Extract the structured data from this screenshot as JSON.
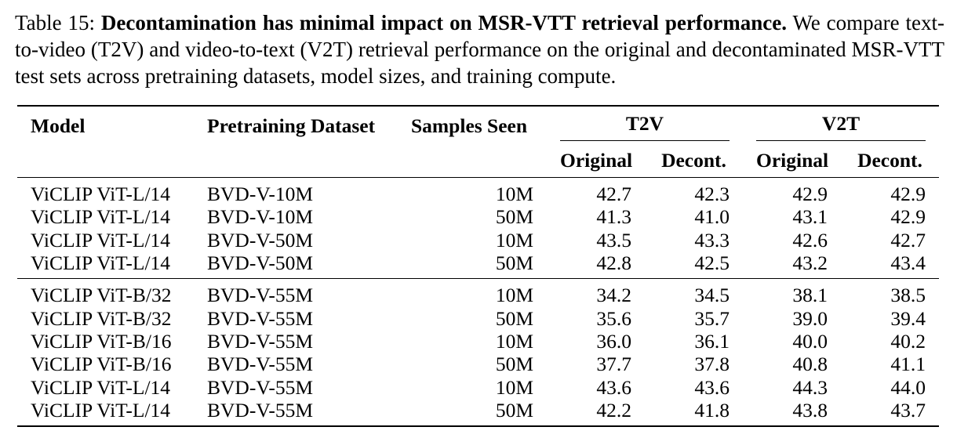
{
  "caption": {
    "label": "Table 15:",
    "bold_title": "Decontamination has minimal impact on MSR-VTT retrieval performance.",
    "body": "We compare text-to-video (T2V) and video-to-text (V2T) retrieval performance on the original and decontaminated MSR-VTT test sets across pretraining datasets, model sizes, and training compute."
  },
  "table": {
    "headers": {
      "model": "Model",
      "dataset": "Pretraining Dataset",
      "samples": "Samples Seen",
      "t2v": "T2V",
      "v2t": "V2T",
      "original": "Original",
      "decont": "Decont."
    },
    "groups": [
      {
        "rows": [
          {
            "model": "ViCLIP ViT-L/14",
            "dataset": "BVD-V-10M",
            "samples": "10M",
            "t2v_orig": "42.7",
            "t2v_decont": "42.3",
            "v2t_orig": "42.9",
            "v2t_decont": "42.9"
          },
          {
            "model": "ViCLIP ViT-L/14",
            "dataset": "BVD-V-10M",
            "samples": "50M",
            "t2v_orig": "41.3",
            "t2v_decont": "41.0",
            "v2t_orig": "43.1",
            "v2t_decont": "42.9"
          },
          {
            "model": "ViCLIP ViT-L/14",
            "dataset": "BVD-V-50M",
            "samples": "10M",
            "t2v_orig": "43.5",
            "t2v_decont": "43.3",
            "v2t_orig": "42.6",
            "v2t_decont": "42.7"
          },
          {
            "model": "ViCLIP ViT-L/14",
            "dataset": "BVD-V-50M",
            "samples": "50M",
            "t2v_orig": "42.8",
            "t2v_decont": "42.5",
            "v2t_orig": "43.2",
            "v2t_decont": "43.4"
          }
        ]
      },
      {
        "rows": [
          {
            "model": "ViCLIP ViT-B/32",
            "dataset": "BVD-V-55M",
            "samples": "10M",
            "t2v_orig": "34.2",
            "t2v_decont": "34.5",
            "v2t_orig": "38.1",
            "v2t_decont": "38.5"
          },
          {
            "model": "ViCLIP ViT-B/32",
            "dataset": "BVD-V-55M",
            "samples": "50M",
            "t2v_orig": "35.6",
            "t2v_decont": "35.7",
            "v2t_orig": "39.0",
            "v2t_decont": "39.4"
          },
          {
            "model": "ViCLIP ViT-B/16",
            "dataset": "BVD-V-55M",
            "samples": "10M",
            "t2v_orig": "36.0",
            "t2v_decont": "36.1",
            "v2t_orig": "40.0",
            "v2t_decont": "40.2"
          },
          {
            "model": "ViCLIP ViT-B/16",
            "dataset": "BVD-V-55M",
            "samples": "50M",
            "t2v_orig": "37.7",
            "t2v_decont": "37.8",
            "v2t_orig": "40.8",
            "v2t_decont": "41.1"
          },
          {
            "model": "ViCLIP ViT-L/14",
            "dataset": "BVD-V-55M",
            "samples": "10M",
            "t2v_orig": "43.6",
            "t2v_decont": "43.6",
            "v2t_orig": "44.3",
            "v2t_decont": "44.0"
          },
          {
            "model": "ViCLIP ViT-L/14",
            "dataset": "BVD-V-55M",
            "samples": "50M",
            "t2v_orig": "42.2",
            "t2v_decont": "41.8",
            "v2t_orig": "43.8",
            "v2t_decont": "43.7"
          }
        ]
      }
    ]
  }
}
